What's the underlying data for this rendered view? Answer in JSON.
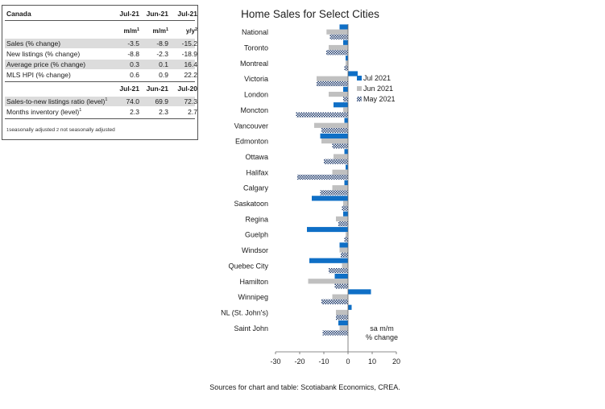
{
  "table": {
    "title": "Canada",
    "header1": [
      "Jul-21",
      "Jun-21",
      "Jul-21"
    ],
    "units1": [
      {
        "t": "m/m",
        "s": "1"
      },
      {
        "t": "m/m",
        "s": "1"
      },
      {
        "t": "y/y",
        "s": "2"
      }
    ],
    "rows1": [
      {
        "label": "Sales (% change)",
        "v": [
          "-3.5",
          "-8.9",
          "-15.2"
        ]
      },
      {
        "label": "New listings (% change)",
        "v": [
          "-8.8",
          "-2.3",
          "-18.9"
        ]
      },
      {
        "label": "Average price (% change)",
        "v": [
          "0.3",
          "0.1",
          "16.4"
        ]
      },
      {
        "label": "MLS HPI (% change)",
        "v": [
          "0.6",
          "0.9",
          "22.2"
        ]
      }
    ],
    "header2": [
      "Jul-21",
      "Jun-21",
      "Jul-20"
    ],
    "rows2": [
      {
        "label": "Sales-to-new listings ratio (level)",
        "sup": "1",
        "v": [
          "74.0",
          "69.9",
          "72.3"
        ]
      },
      {
        "label": "Months inventory (level)",
        "sup": "1",
        "v": [
          "2.3",
          "2.3",
          "2.7"
        ]
      }
    ],
    "footnote": "seasonally adjusted  not seasonally adjusted",
    "footnote_sup1": "1",
    "footnote_sup2": "2",
    "footnote_part1": "seasonally adjusted ",
    "footnote_part2": " not seasonally adjusted"
  },
  "chart_data": {
    "type": "bar",
    "orientation": "horizontal",
    "title": "Home Sales for Select Cities",
    "categories": [
      "National",
      "Toronto",
      "Montreal",
      "Victoria",
      "London",
      "Moncton",
      "Vancouver",
      "Edmonton",
      "Ottawa",
      "Halifax",
      "Calgary",
      "Saskatoon",
      "Regina",
      "Guelph",
      "Windsor",
      "Quebec City",
      "Hamilton",
      "Winnipeg",
      "NL (St. John's)",
      "Saint John"
    ],
    "series": [
      {
        "name": "Jul 2021",
        "color": "#0f6fc6",
        "pattern": "solid",
        "values": [
          -3.5,
          -2,
          -1,
          4,
          -2,
          -6,
          -1.5,
          -11.5,
          -1.5,
          -1,
          -1.5,
          -15,
          -2,
          -17,
          -3.5,
          -16,
          -5.5,
          9.5,
          1.5,
          -4
        ]
      },
      {
        "name": "Jun 2021",
        "color": "#c0c0c0",
        "pattern": "solid",
        "values": [
          -8.9,
          -8,
          -1,
          -13,
          -8,
          -2,
          -14,
          -11,
          -6,
          -6.5,
          -6.5,
          -2,
          -5,
          -1,
          -3.5,
          -2.5,
          -16.5,
          -6.5,
          -5,
          -3.5
        ]
      },
      {
        "name": "May 2021",
        "color": "#1e3a6b",
        "pattern": "checker",
        "values": [
          -7.5,
          -9,
          -1.5,
          -13,
          -2,
          -21.5,
          -11,
          -6.5,
          -10,
          -21,
          -11.5,
          -2.5,
          -4,
          -1.5,
          -3,
          -8,
          -5.5,
          -11,
          -5,
          -10.5
        ]
      }
    ],
    "xlim": [
      -30,
      20
    ],
    "xticks": [
      -30,
      -20,
      -10,
      0,
      10,
      20
    ],
    "xtick_labels": [
      "-30",
      "-20",
      "-10",
      "0",
      "10",
      "20"
    ],
    "legend_position": "right",
    "annotation": [
      "sa m/m",
      "% change"
    ],
    "source": "Sources for chart and table: Scotiabank Economics, CREA."
  }
}
